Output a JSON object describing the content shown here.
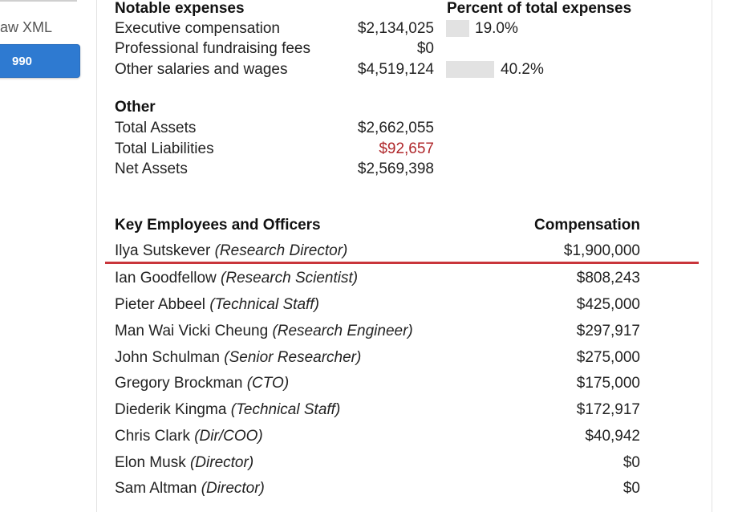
{
  "sidebar": {
    "raw_xml_label": "aw XML",
    "btn_990_label": "990"
  },
  "notable_expenses": {
    "heading": "Notable expenses",
    "percent_heading": "Percent of total expenses",
    "rows": [
      {
        "label": "Executive compensation",
        "value": "$2,134,025",
        "percent": "19.0%",
        "percent_value": 19.0
      },
      {
        "label": "Professional fundraising fees",
        "value": "$0"
      },
      {
        "label": "Other salaries and wages",
        "value": "$4,519,124",
        "percent": "40.2%",
        "percent_value": 40.2
      }
    ]
  },
  "other": {
    "heading": "Other",
    "rows": [
      {
        "label": "Total Assets",
        "value": "$2,662,055"
      },
      {
        "label": "Total Liabilities",
        "value": "$92,657",
        "negative": true
      },
      {
        "label": "Net Assets",
        "value": "$2,569,398"
      }
    ]
  },
  "employees": {
    "heading": "Key Employees and Officers",
    "comp_heading": "Compensation",
    "rows": [
      {
        "name": "Ilya Sutskever",
        "role": "(Research Director)",
        "comp": "$1,900,000"
      },
      {
        "name": "Ian Goodfellow",
        "role": "(Research Scientist)",
        "comp": "$808,243"
      },
      {
        "name": "Pieter Abbeel",
        "role": "(Technical Staff)",
        "comp": "$425,000"
      },
      {
        "name": "Man Wai Vicki Cheung",
        "role": "(Research Engineer)",
        "comp": "$297,917"
      },
      {
        "name": "John Schulman",
        "role": "(Senior Researcher)",
        "comp": "$275,000"
      },
      {
        "name": "Gregory Brockman",
        "role": "(CTO)",
        "comp": "$175,000"
      },
      {
        "name": "Diederik Kingma",
        "role": "(Technical Staff)",
        "comp": "$172,917"
      },
      {
        "name": "Chris Clark",
        "role": "(Dir/COO)",
        "comp": "$40,942"
      },
      {
        "name": "Elon Musk",
        "role": "(Director)",
        "comp": "$0"
      },
      {
        "name": "Sam Altman",
        "role": "(Director)",
        "comp": "$0"
      }
    ]
  },
  "colors": {
    "accent_button": "#2e7ad1",
    "negative": "#b0282c",
    "highlight_rule": "#c9353b",
    "bar": "#e2e2e2"
  }
}
